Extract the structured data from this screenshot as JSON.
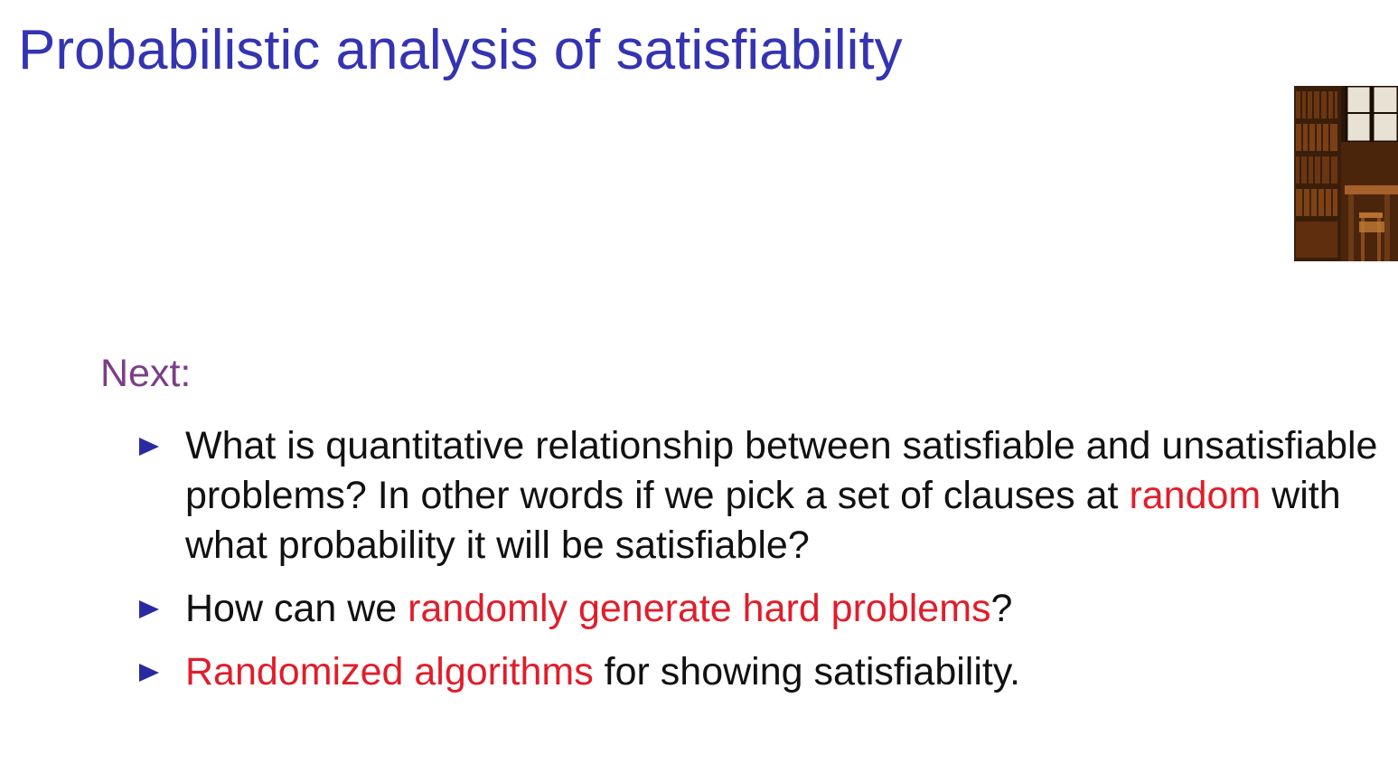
{
  "slide": {
    "title": "Probabilistic analysis of satisfiability",
    "next_label": "Next:",
    "bullets": [
      {
        "parts": [
          "What is quantitative relationship between satisfiable and unsatisfiable problems? In other words if we pick a set of clauses at ",
          "random",
          " with what probability it will be satisfiable?"
        ]
      },
      {
        "parts": [
          "How can we ",
          "randomly generate hard problems",
          "?"
        ]
      },
      {
        "parts": [
          "Randomized algorithms",
          " for showing satisfiability."
        ]
      }
    ]
  },
  "colors": {
    "title": "#3434b2",
    "next_label": "#7b3f86",
    "body_text": "#111111",
    "emphasis": "#e11d2a",
    "bullet_marker": "#2a2aa0"
  },
  "icons": {
    "bullet": "triangle-right-icon",
    "photo": "library-bookshelves-photo"
  }
}
